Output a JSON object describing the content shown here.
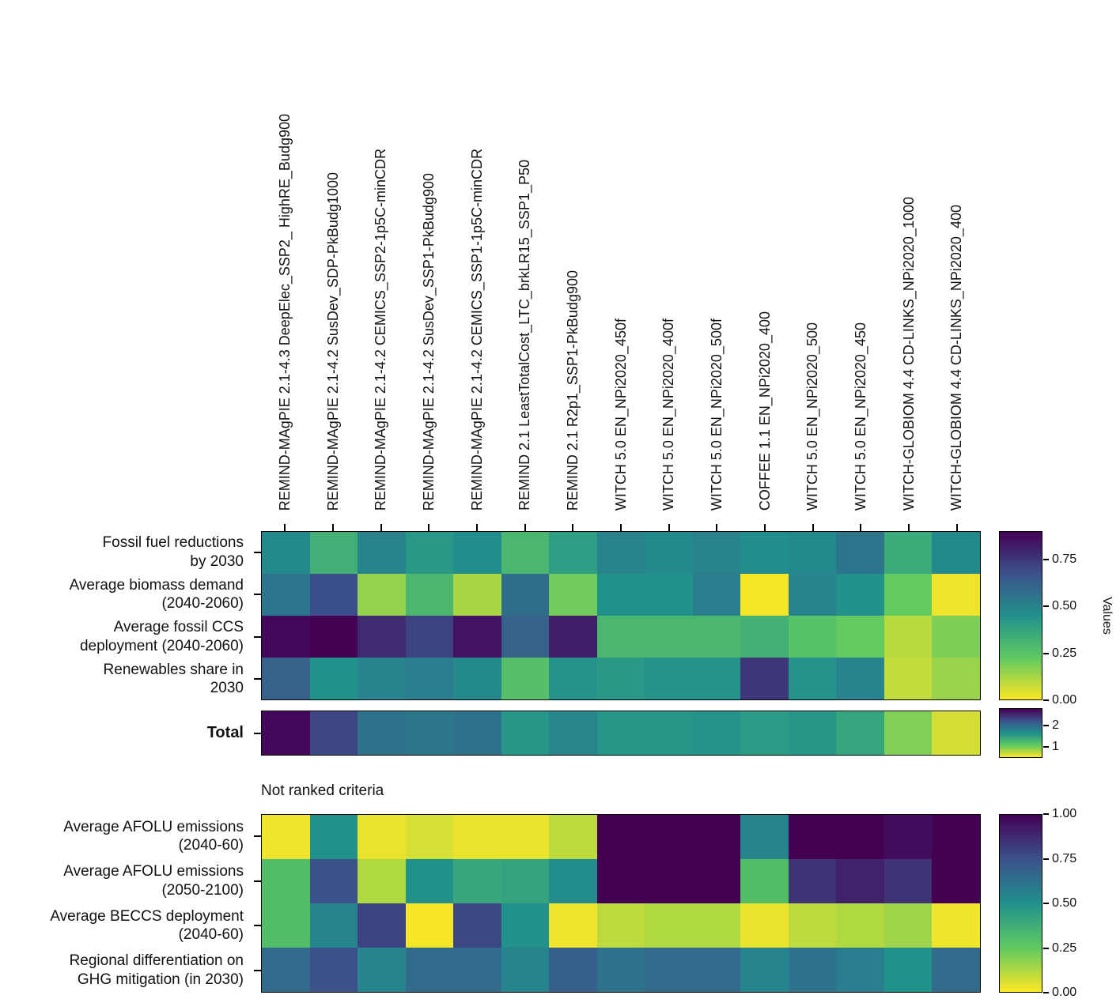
{
  "chart_data": {
    "type": "heatmap",
    "colormap": "viridis_reversed",
    "description": "Scenario assessment heatmaps: ranked criteria, total score, and not ranked criteria across 15 model scenarios",
    "columns": [
      "REMIND-MAgPIE 2.1-4.3 DeepElec_SSP2_ HighRE_Budg900",
      "REMIND-MAgPIE 2.1-4.2 SusDev_SDP-PkBudg1000",
      "REMIND-MAgPIE 2.1-4.2 CEMICS_SSP2-1p5C-minCDR",
      "REMIND-MAgPIE 2.1-4.2 SusDev_SSP1-PkBudg900",
      "REMIND-MAgPIE 2.1-4.2 CEMICS_SSP1-1p5C-minCDR",
      "REMIND 2.1 LeastTotalCost_LTC_brkLR15_SSP1_P50",
      "REMIND 2.1 R2p1_SSP1-PkBudg900",
      "WITCH 5.0 EN_NPi2020_450f",
      "WITCH 5.0 EN_NPi2020_400f",
      "WITCH 5.0 EN_NPi2020_500f",
      "COFFEE 1.1 EN_NPi2020_400",
      "WITCH 5.0 EN_NPi2020_500",
      "WITCH 5.0 EN_NPi2020_450",
      "WITCH-GLOBIOM 4.4 CD-LINKS_NPi2020_1000",
      "WITCH-GLOBIOM 4.4 CD-LINKS_NPi2020_400"
    ],
    "panels": [
      {
        "id": "ranked",
        "vmin": 0,
        "vmax": 0.9,
        "colorbar_tick_labels": [
          "0.75",
          "0.50",
          "0.25",
          "0.00"
        ],
        "colorbar_tick_values": [
          0.75,
          0.5,
          0.25,
          0
        ],
        "colorbar_label": "Values",
        "rows": [
          {
            "label": "Fossil fuel reductions\nby 2030",
            "values": [
              0.48,
              0.33,
              0.5,
              0.42,
              0.46,
              0.3,
              0.4,
              0.5,
              0.48,
              0.5,
              0.46,
              0.48,
              0.55,
              0.35,
              0.48
            ]
          },
          {
            "label": "Average biomass demand\n(2040-2060)",
            "values": [
              0.55,
              0.68,
              0.15,
              0.3,
              0.12,
              0.58,
              0.2,
              0.45,
              0.45,
              0.52,
              0.01,
              0.5,
              0.45,
              0.22,
              0.02
            ]
          },
          {
            "label": "Average fossil CCS\ndeployment (2040-2060)",
            "values": [
              0.88,
              0.9,
              0.78,
              0.72,
              0.85,
              0.62,
              0.82,
              0.3,
              0.3,
              0.3,
              0.32,
              0.25,
              0.22,
              0.1,
              0.18
            ]
          },
          {
            "label": "Renewables share in\n2030",
            "values": [
              0.62,
              0.45,
              0.5,
              0.52,
              0.48,
              0.26,
              0.44,
              0.42,
              0.44,
              0.44,
              0.75,
              0.44,
              0.5,
              0.08,
              0.14
            ]
          }
        ]
      },
      {
        "id": "total",
        "vmin": 0.5,
        "vmax": 2.8,
        "colorbar_tick_labels": [
          "2",
          "1"
        ],
        "colorbar_tick_values": [
          2,
          1
        ],
        "colorbar_label": "",
        "rows": [
          {
            "label": "Total",
            "values": [
              2.75,
              2.3,
              1.95,
              1.9,
              1.95,
              1.6,
              1.75,
              1.6,
              1.6,
              1.62,
              1.55,
              1.6,
              1.45,
              0.95,
              0.65
            ]
          }
        ]
      },
      {
        "id": "not_ranked",
        "title": "Not ranked criteria",
        "vmin": 0,
        "vmax": 1,
        "colorbar_tick_labels": [
          "1.00",
          "0.75",
          "0.50",
          "0.25",
          "0.00"
        ],
        "colorbar_tick_values": [
          1,
          0.75,
          0.5,
          0.25,
          0
        ],
        "colorbar_label": "",
        "rows": [
          {
            "label": "Average AFOLU emissions\n(2040-60)",
            "values": [
              0.02,
              0.5,
              0.03,
              0.06,
              0.03,
              0.03,
              0.1,
              1.0,
              1.0,
              1.0,
              0.55,
              1.0,
              1.0,
              0.97,
              1.0
            ]
          },
          {
            "label": "Average AFOLU emissions\n(2050-2100)",
            "values": [
              0.3,
              0.75,
              0.12,
              0.5,
              0.4,
              0.42,
              0.52,
              1.0,
              1.0,
              1.0,
              0.3,
              0.85,
              0.9,
              0.85,
              1.0
            ]
          },
          {
            "label": "Average BECCS deployment\n(2040-60)",
            "values": [
              0.3,
              0.55,
              0.8,
              0.01,
              0.78,
              0.5,
              0.02,
              0.1,
              0.12,
              0.12,
              0.03,
              0.1,
              0.12,
              0.15,
              0.02
            ]
          },
          {
            "label": "Regional differentiation on\nGHG mitigation (in 2030)",
            "values": [
              0.65,
              0.75,
              0.55,
              0.65,
              0.65,
              0.55,
              0.7,
              0.62,
              0.65,
              0.65,
              0.55,
              0.62,
              0.58,
              0.5,
              0.65
            ]
          }
        ]
      }
    ]
  }
}
